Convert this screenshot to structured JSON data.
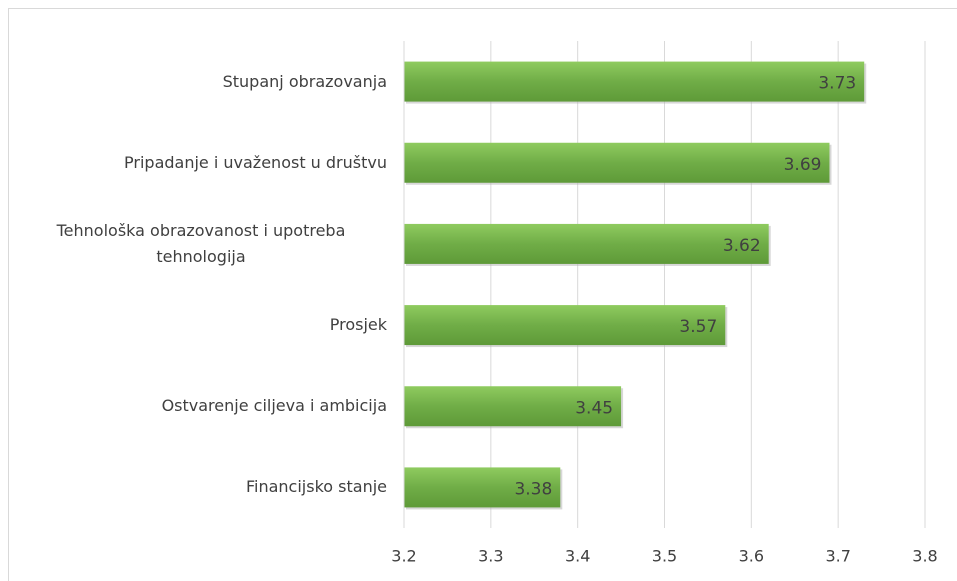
{
  "chart_data": {
    "type": "bar",
    "orientation": "horizontal",
    "categories": [
      "Stupanj obrazovanja",
      "Pripadanje i uvaženost u društvu",
      "Tehnološka obrazovanost i upotreba tehnologija",
      "Prosjek",
      "Ostvarenje ciljeva i ambicija",
      "Financijsko stanje"
    ],
    "values": [
      3.73,
      3.69,
      3.62,
      3.57,
      3.45,
      3.38
    ],
    "color": "#70ad47",
    "xlim": [
      3.2,
      3.8
    ],
    "xticks": [
      3.2,
      3.3,
      3.4,
      3.5,
      3.6,
      3.7,
      3.8
    ],
    "grid": true
  }
}
